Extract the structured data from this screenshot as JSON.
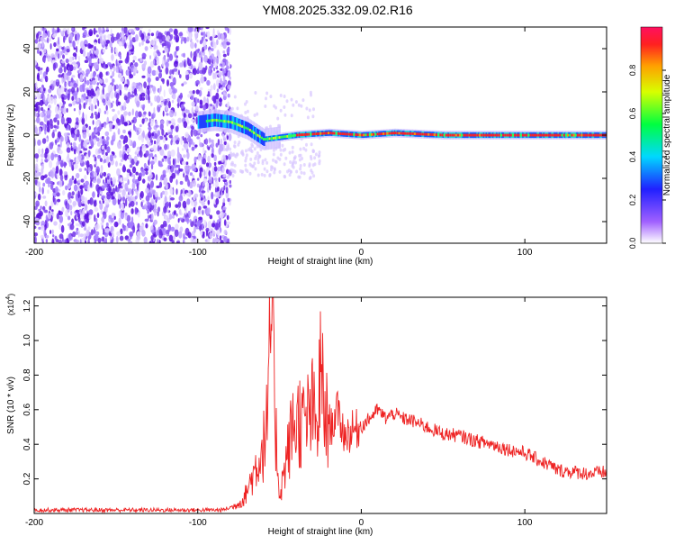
{
  "title": "YM08.2025.332.09.02.R16",
  "chart_data": [
    {
      "type": "heatmap",
      "xlabel": "Height of straight line (km)",
      "ylabel": "Frequency (Hz)",
      "xlim": [
        -200,
        150
      ],
      "ylim": [
        -50,
        50
      ],
      "xticks": [
        -200,
        -100,
        0,
        100
      ],
      "yticks": [
        -40,
        -20,
        0,
        20,
        40
      ],
      "colorbar": {
        "label": "Normalized spectral amplitude",
        "range": [
          0,
          1
        ],
        "ticks": [
          0.0,
          0.2,
          0.4,
          0.6,
          0.8
        ]
      },
      "ridge": [
        {
          "x": -100,
          "y": 6
        },
        {
          "x": -90,
          "y": 7
        },
        {
          "x": -80,
          "y": 6
        },
        {
          "x": -70,
          "y": 3
        },
        {
          "x": -60,
          "y": -2
        },
        {
          "x": -50,
          "y": -1
        },
        {
          "x": -40,
          "y": 0
        },
        {
          "x": -20,
          "y": 1
        },
        {
          "x": 0,
          "y": 0
        },
        {
          "x": 20,
          "y": 1
        },
        {
          "x": 50,
          "y": 0
        },
        {
          "x": 100,
          "y": 0
        },
        {
          "x": 150,
          "y": 0
        }
      ]
    },
    {
      "type": "line",
      "xlabel": "Height of straight line (km)",
      "ylabel": "SNR (10 * v/v)",
      "multiplier": "(x10",
      "multiplier_exp": "4",
      "multiplier_close": ")",
      "xlim": [
        -200,
        150
      ],
      "ylim": [
        0,
        1.25
      ],
      "xticks": [
        -200,
        -100,
        0,
        100
      ],
      "yticks": [
        0.2,
        0.4,
        0.6,
        0.8,
        1.0,
        1.2
      ],
      "series": [
        {
          "color": "#ee2222",
          "x": [
            -200,
            -150,
            -100,
            -85,
            -78,
            -72,
            -68,
            -64,
            -60,
            -57,
            -55,
            -53,
            -50,
            -45,
            -42,
            -38,
            -35,
            -30,
            -27,
            -25,
            -22,
            -18,
            -15,
            -10,
            -5,
            0,
            5,
            10,
            15,
            20,
            25,
            30,
            40,
            50,
            60,
            70,
            80,
            90,
            100,
            110,
            115,
            120,
            130,
            140,
            150
          ],
          "y": [
            0.02,
            0.02,
            0.02,
            0.02,
            0.04,
            0.08,
            0.18,
            0.28,
            0.38,
            0.55,
            1.24,
            0.6,
            0.1,
            0.35,
            0.5,
            0.55,
            0.5,
            0.6,
            0.45,
            0.82,
            0.55,
            0.5,
            0.6,
            0.45,
            0.48,
            0.5,
            0.55,
            0.6,
            0.55,
            0.58,
            0.55,
            0.54,
            0.5,
            0.46,
            0.45,
            0.42,
            0.4,
            0.37,
            0.35,
            0.3,
            0.28,
            0.25,
            0.24,
            0.23,
            0.24
          ]
        }
      ]
    }
  ]
}
